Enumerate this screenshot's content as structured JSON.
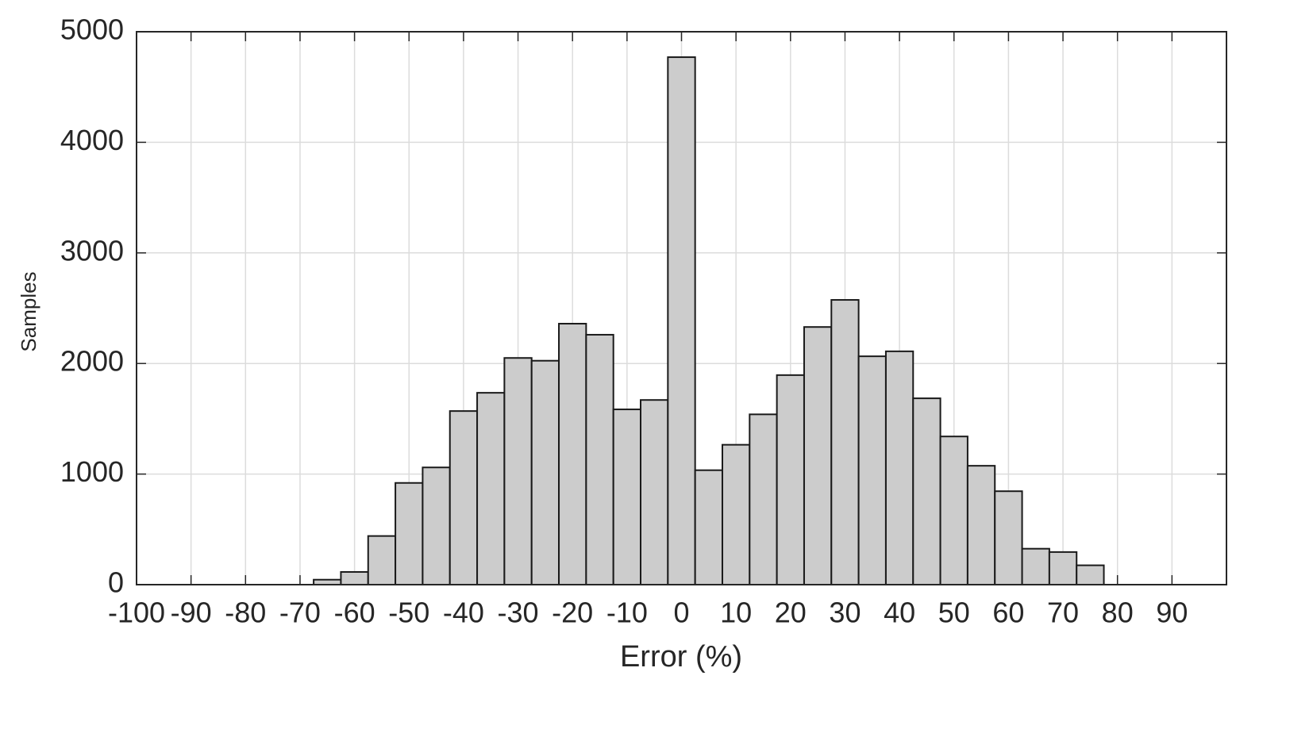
{
  "chart_data": {
    "type": "histogram",
    "x_label": "Error (%)",
    "y_label": "Samples",
    "bins": [
      -67.5,
      -62.5,
      -57.5,
      -52.5,
      -47.5,
      -42.5,
      -37.5,
      -32.5,
      -27.5,
      -22.5,
      -17.5,
      -12.5,
      -7.5,
      -2.5,
      2.5,
      7.5,
      12.5,
      17.5,
      22.5,
      27.5,
      32.5,
      37.5,
      42.5,
      47.5,
      52.5,
      57.5,
      62.5,
      67.5,
      72.5,
      77.5
    ],
    "values": [
      45,
      115,
      440,
      920,
      1060,
      1570,
      1735,
      2050,
      2025,
      2360,
      2260,
      1585,
      1670,
      4770,
      1035,
      1265,
      1540,
      1895,
      2330,
      2575,
      2065,
      2110,
      1685,
      1340,
      1075,
      845,
      325,
      295,
      175
    ],
    "color": "#cccccc",
    "xlim": [
      -100,
      100
    ],
    "xticks": [
      -100,
      -90,
      -80,
      -70,
      -60,
      -50,
      -40,
      -30,
      -20,
      -10,
      0,
      10,
      20,
      30,
      40,
      50,
      60,
      70,
      80,
      90
    ],
    "ylim": [
      0,
      5000
    ],
    "yticks": [
      0,
      1000,
      2000,
      3000,
      4000,
      5000
    ],
    "grid": true
  }
}
